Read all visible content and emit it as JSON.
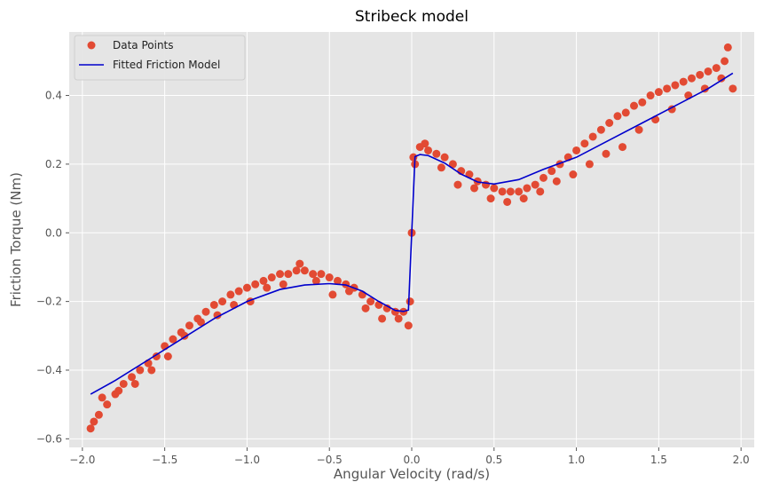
{
  "chart_data": {
    "type": "scatter",
    "title": "Stribeck model",
    "xlabel": "Angular Velocity (rad/s)",
    "ylabel": "Friction Torque (Nm)",
    "xlim": [
      -2.08,
      2.08
    ],
    "ylim": [
      -0.625,
      0.585
    ],
    "xticks": [
      -2.0,
      -1.5,
      -1.0,
      -0.5,
      0.0,
      0.5,
      1.0,
      1.5,
      2.0
    ],
    "xtick_labels": [
      "−2.0",
      "−1.5",
      "−1.0",
      "−0.5",
      "0.0",
      "0.5",
      "1.0",
      "1.5",
      "2.0"
    ],
    "yticks": [
      -0.6,
      -0.4,
      -0.2,
      0.0,
      0.2,
      0.4
    ],
    "ytick_labels": [
      "−0.6",
      "−0.4",
      "−0.2",
      "0.0",
      "0.2",
      "0.4"
    ],
    "grid": true,
    "legend": "top-left",
    "colors": {
      "points": "#E24A33",
      "line": "#0000CC",
      "background": "#E5E5E5",
      "grid": "#FFFFFF"
    },
    "series": [
      {
        "name": "Data Points",
        "kind": "scatter",
        "x": [
          -1.95,
          -1.9,
          -1.85,
          -1.8,
          -1.75,
          -1.7,
          -1.65,
          -1.6,
          -1.55,
          -1.5,
          -1.45,
          -1.4,
          -1.35,
          -1.3,
          -1.25,
          -1.2,
          -1.15,
          -1.1,
          -1.05,
          -1.0,
          -0.95,
          -0.9,
          -0.85,
          -0.8,
          -0.75,
          -0.7,
          -0.65,
          -0.6,
          -0.55,
          -0.5,
          -0.45,
          -0.4,
          -0.35,
          -0.3,
          -0.25,
          -0.2,
          -0.15,
          -0.1,
          -0.05,
          -0.01,
          0.0,
          0.01,
          0.05,
          0.1,
          0.15,
          0.2,
          0.25,
          0.3,
          0.35,
          0.4,
          0.45,
          0.5,
          0.55,
          0.6,
          0.65,
          0.7,
          0.75,
          0.8,
          0.85,
          0.9,
          0.95,
          1.0,
          1.05,
          1.1,
          1.15,
          1.2,
          1.25,
          1.3,
          1.35,
          1.4,
          1.45,
          1.5,
          1.55,
          1.6,
          1.65,
          1.7,
          1.75,
          1.8,
          1.85,
          1.9,
          1.95,
          -1.93,
          -1.88,
          -1.78,
          -1.68,
          -1.58,
          -1.48,
          -1.38,
          -1.28,
          -1.18,
          -1.08,
          -0.98,
          -0.88,
          -0.78,
          -0.68,
          -0.58,
          -0.48,
          -0.38,
          -0.28,
          -0.18,
          -0.08,
          -0.02,
          0.02,
          0.08,
          0.18,
          0.28,
          0.38,
          0.48,
          0.58,
          0.68,
          0.78,
          0.88,
          0.98,
          1.08,
          1.18,
          1.28,
          1.38,
          1.48,
          1.58,
          1.68,
          1.78,
          1.88,
          1.92
        ],
        "y": [
          -0.57,
          -0.53,
          -0.5,
          -0.47,
          -0.44,
          -0.42,
          -0.4,
          -0.38,
          -0.36,
          -0.33,
          -0.31,
          -0.29,
          -0.27,
          -0.25,
          -0.23,
          -0.21,
          -0.2,
          -0.18,
          -0.17,
          -0.16,
          -0.15,
          -0.14,
          -0.13,
          -0.12,
          -0.12,
          -0.11,
          -0.11,
          -0.12,
          -0.12,
          -0.13,
          -0.14,
          -0.15,
          -0.16,
          -0.18,
          -0.2,
          -0.21,
          -0.22,
          -0.23,
          -0.23,
          -0.2,
          0.0,
          0.22,
          0.25,
          0.24,
          0.23,
          0.22,
          0.2,
          0.18,
          0.17,
          0.15,
          0.14,
          0.13,
          0.12,
          0.12,
          0.12,
          0.13,
          0.14,
          0.16,
          0.18,
          0.2,
          0.22,
          0.24,
          0.26,
          0.28,
          0.3,
          0.32,
          0.34,
          0.35,
          0.37,
          0.38,
          0.4,
          0.41,
          0.42,
          0.43,
          0.44,
          0.45,
          0.46,
          0.47,
          0.48,
          0.5,
          0.42,
          -0.55,
          -0.48,
          -0.46,
          -0.44,
          -0.4,
          -0.36,
          -0.3,
          -0.26,
          -0.24,
          -0.21,
          -0.2,
          -0.16,
          -0.15,
          -0.09,
          -0.14,
          -0.18,
          -0.17,
          -0.22,
          -0.25,
          -0.25,
          -0.27,
          0.2,
          0.26,
          0.19,
          0.14,
          0.13,
          0.1,
          0.09,
          0.1,
          0.12,
          0.15,
          0.17,
          0.2,
          0.23,
          0.25,
          0.3,
          0.33,
          0.36,
          0.4,
          0.42,
          0.45,
          0.54
        ]
      },
      {
        "name": "Fitted Friction Model",
        "kind": "line",
        "x": [
          -1.95,
          -1.8,
          -1.6,
          -1.4,
          -1.2,
          -1.0,
          -0.8,
          -0.65,
          -0.5,
          -0.4,
          -0.3,
          -0.2,
          -0.1,
          -0.05,
          -0.02,
          0.0,
          0.02,
          0.05,
          0.1,
          0.2,
          0.3,
          0.4,
          0.5,
          0.65,
          0.8,
          1.0,
          1.2,
          1.4,
          1.6,
          1.8,
          1.95
        ],
        "y": [
          -0.47,
          -0.43,
          -0.37,
          -0.31,
          -0.25,
          -0.2,
          -0.165,
          -0.152,
          -0.148,
          -0.152,
          -0.17,
          -0.2,
          -0.226,
          -0.229,
          -0.225,
          0.0,
          0.222,
          0.228,
          0.225,
          0.203,
          0.171,
          0.148,
          0.142,
          0.155,
          0.185,
          0.22,
          0.27,
          0.32,
          0.37,
          0.42,
          0.465
        ]
      }
    ]
  }
}
